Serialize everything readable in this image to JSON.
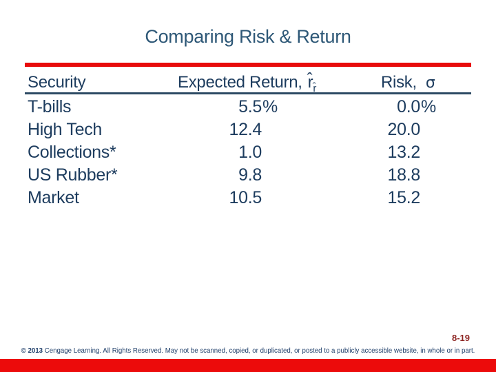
{
  "slide": {
    "title": "Comparing Risk & Return",
    "page_number": "8-19",
    "copyright_prefix": "© 2013",
    "copyright_body": "Cengage Learning. All Rights Reserved. May not be scanned, copied, or duplicated, or posted to a publicly accessible website, in whole or in part."
  },
  "colors": {
    "title_blue": "#2E5877",
    "table_navy": "#1D3C5E",
    "accent_red": "#EC0B0B",
    "header_underline": "#2C4A63",
    "page_number_red": "#8E2623",
    "copyright_navy": "#21406B"
  },
  "table": {
    "headers": {
      "security": "Security",
      "expected_return_prefix": "Expected Return,",
      "expected_return_symbol": "r̂",
      "expected_return_subscript": "r̂",
      "risk_prefix": "Risk,",
      "risk_symbol": "σ"
    },
    "rows": [
      {
        "security": "T-bills",
        "expected_return": "5.5",
        "expected_return_suffix": "%",
        "risk": "0.0",
        "risk_suffix": "%"
      },
      {
        "security": "High Tech",
        "expected_return": "12.4",
        "expected_return_suffix": "",
        "risk": "20.0",
        "risk_suffix": ""
      },
      {
        "security": "Collections*",
        "expected_return": "1.0",
        "expected_return_suffix": "",
        "risk": "13.2",
        "risk_suffix": ""
      },
      {
        "security": "US Rubber*",
        "expected_return": "9.8",
        "expected_return_suffix": "",
        "risk": "18.8",
        "risk_suffix": ""
      },
      {
        "security": "Market",
        "expected_return": "10.5",
        "expected_return_suffix": "",
        "risk": "15.2",
        "risk_suffix": ""
      }
    ]
  }
}
